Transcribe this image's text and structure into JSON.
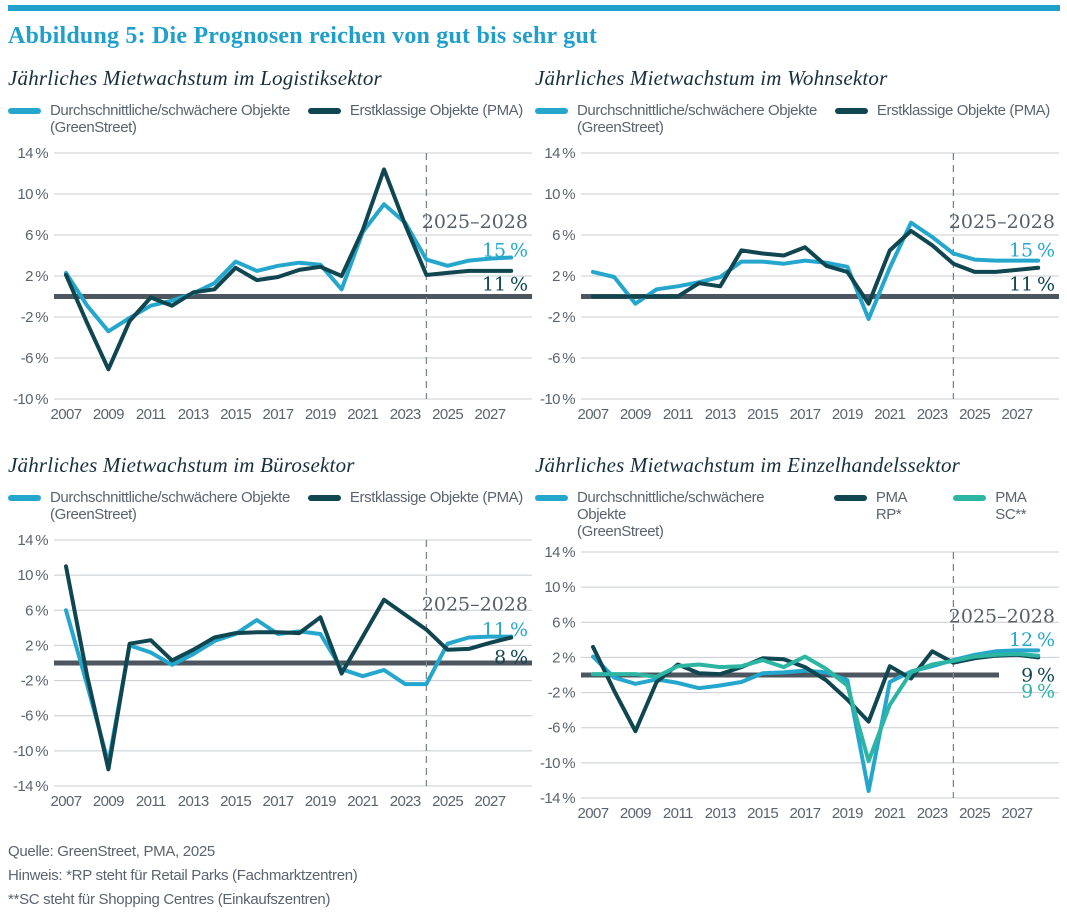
{
  "figure": {
    "title": "Abbildung 5: Die Prognosen reichen von gut bis sehr gut",
    "accent_color": "#219FCB"
  },
  "footer": {
    "source": "Quelle: GreenStreet, PMA, 2025",
    "note_rp": "Hinweis: *RP steht für Retail Parks (Fachmarktzentren)",
    "note_sc": "**SC steht für Shopping Centres (Einkaufszentren)"
  },
  "colors": {
    "cyan_line": "#25A7CD",
    "dark_teal_line": "#0F4650",
    "green_teal_line": "#2BB5A2",
    "axis_text": "#5A646E",
    "gridline": "#C8CCD0",
    "zero_line": "#4D565E",
    "forecast_divider": "#7E868D"
  },
  "chart_data": [
    {
      "id": "logistiksektor",
      "type": "line",
      "title": "Jährliches Mietwachstum im Logistiksektor",
      "unit": "%",
      "x": [
        2007,
        2008,
        2009,
        2010,
        2011,
        2012,
        2013,
        2014,
        2015,
        2016,
        2017,
        2018,
        2019,
        2020,
        2021,
        2022,
        2023,
        2024,
        2025,
        2026,
        2027,
        2028
      ],
      "xticks": [
        2007,
        2009,
        2011,
        2013,
        2015,
        2017,
        2019,
        2021,
        2023,
        2025,
        2027
      ],
      "ylim": [
        -10,
        14
      ],
      "yticks": [
        14,
        10,
        6,
        2,
        -2,
        -6,
        -10
      ],
      "zero_line": true,
      "forecast_divider_year": 2024,
      "annotation": {
        "label": "2025–2028",
        "label_y": 6.7,
        "values": [
          {
            "text": "15%",
            "color": "#25A7CD",
            "y": 3.9
          },
          {
            "text": "11%",
            "color": "#0F4650",
            "y": 0.6
          }
        ]
      },
      "series": [
        {
          "name": "Durchschnittliche/schwächere Objekte (GreenStreet)",
          "label_lines": [
            "Durchschnittliche/schwächere Objekte",
            "(GreenStreet)"
          ],
          "color": "#25A7CD",
          "values": [
            2.3,
            -0.9,
            -3.4,
            -2.1,
            -0.9,
            -0.4,
            0.3,
            1.3,
            3.4,
            2.5,
            3.0,
            3.3,
            3.1,
            0.7,
            6.3,
            9.0,
            7.2,
            3.6,
            3.0,
            3.5,
            3.7,
            3.8
          ]
        },
        {
          "name": "Erstklassige Objekte (PMA)",
          "label_lines": [
            "Erstklassige Objekte (PMA)"
          ],
          "color": "#0F4650",
          "values": [
            2.1,
            -2.6,
            -7.1,
            -2.4,
            -0.1,
            -0.9,
            0.4,
            0.7,
            2.8,
            1.6,
            1.9,
            2.6,
            2.9,
            2.0,
            6.5,
            12.4,
            7.0,
            2.1,
            2.3,
            2.5,
            2.5,
            2.5
          ]
        }
      ]
    },
    {
      "id": "wohnsektor",
      "type": "line",
      "title": "Jährliches Mietwachstum im Wohnsektor",
      "unit": "%",
      "x": [
        2007,
        2008,
        2009,
        2010,
        2011,
        2012,
        2013,
        2014,
        2015,
        2016,
        2017,
        2018,
        2019,
        2020,
        2021,
        2022,
        2023,
        2024,
        2025,
        2026,
        2027,
        2028
      ],
      "xticks": [
        2007,
        2009,
        2011,
        2013,
        2015,
        2017,
        2019,
        2021,
        2023,
        2025,
        2027
      ],
      "ylim": [
        -10,
        14
      ],
      "yticks": [
        14,
        10,
        6,
        2,
        -2,
        -6,
        -10
      ],
      "zero_line": true,
      "forecast_divider_year": 2024,
      "annotation": {
        "label": "2025–2028",
        "label_y": 6.7,
        "values": [
          {
            "text": "15%",
            "color": "#25A7CD",
            "y": 3.9
          },
          {
            "text": "11%",
            "color": "#0F4650",
            "y": 0.6
          }
        ]
      },
      "series": [
        {
          "name": "Durchschnittliche/schwächere Objekte (GreenStreet)",
          "label_lines": [
            "Durchschnittliche/schwächere Objekte",
            "(GreenStreet)"
          ],
          "color": "#25A7CD",
          "values": [
            2.4,
            1.9,
            -0.7,
            0.7,
            1.0,
            1.4,
            1.9,
            3.4,
            3.4,
            3.2,
            3.5,
            3.3,
            2.9,
            -2.2,
            2.8,
            7.2,
            5.8,
            4.2,
            3.6,
            3.5,
            3.5,
            3.5
          ]
        },
        {
          "name": "Erstklassige Objekte (PMA)",
          "label_lines": [
            "Erstklassige Objekte (PMA)"
          ],
          "color": "#0F4650",
          "values": [
            0.0,
            0.0,
            0.0,
            0.0,
            0.0,
            1.3,
            1.0,
            4.5,
            4.2,
            4.0,
            4.8,
            3.0,
            2.4,
            -0.7,
            4.5,
            6.4,
            5.0,
            3.2,
            2.4,
            2.4,
            2.6,
            2.8
          ]
        }
      ]
    },
    {
      "id": "buerosektor",
      "type": "line",
      "title": "Jährliches Mietwachstum im Bürosektor",
      "unit": "%",
      "x": [
        2007,
        2008,
        2009,
        2010,
        2011,
        2012,
        2013,
        2014,
        2015,
        2016,
        2017,
        2018,
        2019,
        2020,
        2021,
        2022,
        2023,
        2024,
        2025,
        2026,
        2027,
        2028
      ],
      "xticks": [
        2007,
        2009,
        2011,
        2013,
        2015,
        2017,
        2019,
        2021,
        2023,
        2025,
        2027
      ],
      "ylim": [
        -14,
        14
      ],
      "yticks": [
        14,
        10,
        6,
        2,
        -2,
        -6,
        -10,
        -14
      ],
      "zero_line": true,
      "forecast_divider_year": 2024,
      "annotation": {
        "label": "2025–2028",
        "label_y": 6.0,
        "values": [
          {
            "text": "11%",
            "color": "#25A7CD",
            "y": 3.1
          },
          {
            "text": "8%",
            "color": "#0F4650",
            "y": -0.05
          }
        ]
      },
      "series": [
        {
          "name": "Durchschnittliche/schwächere Objekte (GreenStreet)",
          "label_lines": [
            "Durchschnittliche/schwächere Objekte",
            "(GreenStreet)"
          ],
          "color": "#25A7CD",
          "values": [
            6.0,
            -2.5,
            -11.4,
            2.0,
            1.2,
            -0.2,
            1.0,
            2.5,
            3.3,
            4.9,
            3.3,
            3.6,
            3.3,
            -0.7,
            -1.5,
            -0.8,
            -2.4,
            -2.4,
            2.2,
            2.9,
            3.0,
            3.0
          ]
        },
        {
          "name": "Erstklassige Objekte (PMA)",
          "label_lines": [
            "Erstklassige Objekte (PMA)"
          ],
          "color": "#0F4650",
          "values": [
            11.0,
            -1.5,
            -12.1,
            2.2,
            2.6,
            0.3,
            1.5,
            2.9,
            3.4,
            3.5,
            3.5,
            3.4,
            5.2,
            -1.2,
            3.0,
            7.2,
            5.5,
            3.8,
            1.5,
            1.6,
            2.3,
            2.9
          ]
        }
      ]
    },
    {
      "id": "einzelhandelssektor",
      "type": "line",
      "title": "Jährliches Mietwachstum im Einzelhandelssektor",
      "unit": "%",
      "x": [
        2007,
        2008,
        2009,
        2010,
        2011,
        2012,
        2013,
        2014,
        2015,
        2016,
        2017,
        2018,
        2019,
        2020,
        2021,
        2022,
        2023,
        2024,
        2025,
        2026,
        2027,
        2028
      ],
      "xticks": [
        2007,
        2009,
        2011,
        2013,
        2015,
        2017,
        2019,
        2021,
        2023,
        2025,
        2027
      ],
      "ylim": [
        -14,
        14
      ],
      "yticks": [
        14,
        10,
        6,
        2,
        -2,
        -6,
        -10,
        -14
      ],
      "zero_line": true,
      "zero_line_short": true,
      "forecast_divider_year": 2024,
      "annotation": {
        "label": "2025–2028",
        "label_y": 6.0,
        "values": [
          {
            "text": "12%",
            "color": "#25A7CD",
            "y": 3.3
          },
          {
            "text": "9%",
            "color": "#0F4650",
            "y": -0.75
          },
          {
            "text": "9%",
            "color": "#2BB5A2",
            "y": -2.55
          }
        ]
      },
      "series": [
        {
          "name": "Durchschnittliche/schwächere Objekte (GreenStreet)",
          "label_lines": [
            "Durchschnittliche/schwächere Objekte",
            "(GreenStreet)"
          ],
          "color": "#25A7CD",
          "values": [
            2.1,
            -0.3,
            -1.0,
            -0.5,
            -0.9,
            -1.5,
            -1.2,
            -0.8,
            0.2,
            0.3,
            0.5,
            0.3,
            -0.6,
            -13.2,
            -0.8,
            0.4,
            1.0,
            1.7,
            2.3,
            2.7,
            2.8,
            2.8
          ]
        },
        {
          "name": "PMA RP*",
          "label_lines": [
            "PMA RP*"
          ],
          "color": "#0F4650",
          "values": [
            3.2,
            -1.8,
            -6.4,
            -0.8,
            1.2,
            0.2,
            0.1,
            0.9,
            1.9,
            1.8,
            0.9,
            -0.6,
            -2.8,
            -5.3,
            1.0,
            -0.4,
            2.7,
            1.4,
            1.9,
            2.2,
            2.3,
            2.0
          ]
        },
        {
          "name": "PMA SC**",
          "label_lines": [
            "PMA SC**"
          ],
          "color": "#2BB5A2",
          "values": [
            0.1,
            0.1,
            0.1,
            -0.2,
            1.0,
            1.2,
            0.9,
            1.0,
            1.7,
            0.9,
            2.1,
            0.7,
            -1.2,
            -9.8,
            -3.4,
            0.3,
            1.2,
            1.6,
            2.1,
            2.3,
            2.4,
            2.2
          ]
        }
      ]
    }
  ]
}
